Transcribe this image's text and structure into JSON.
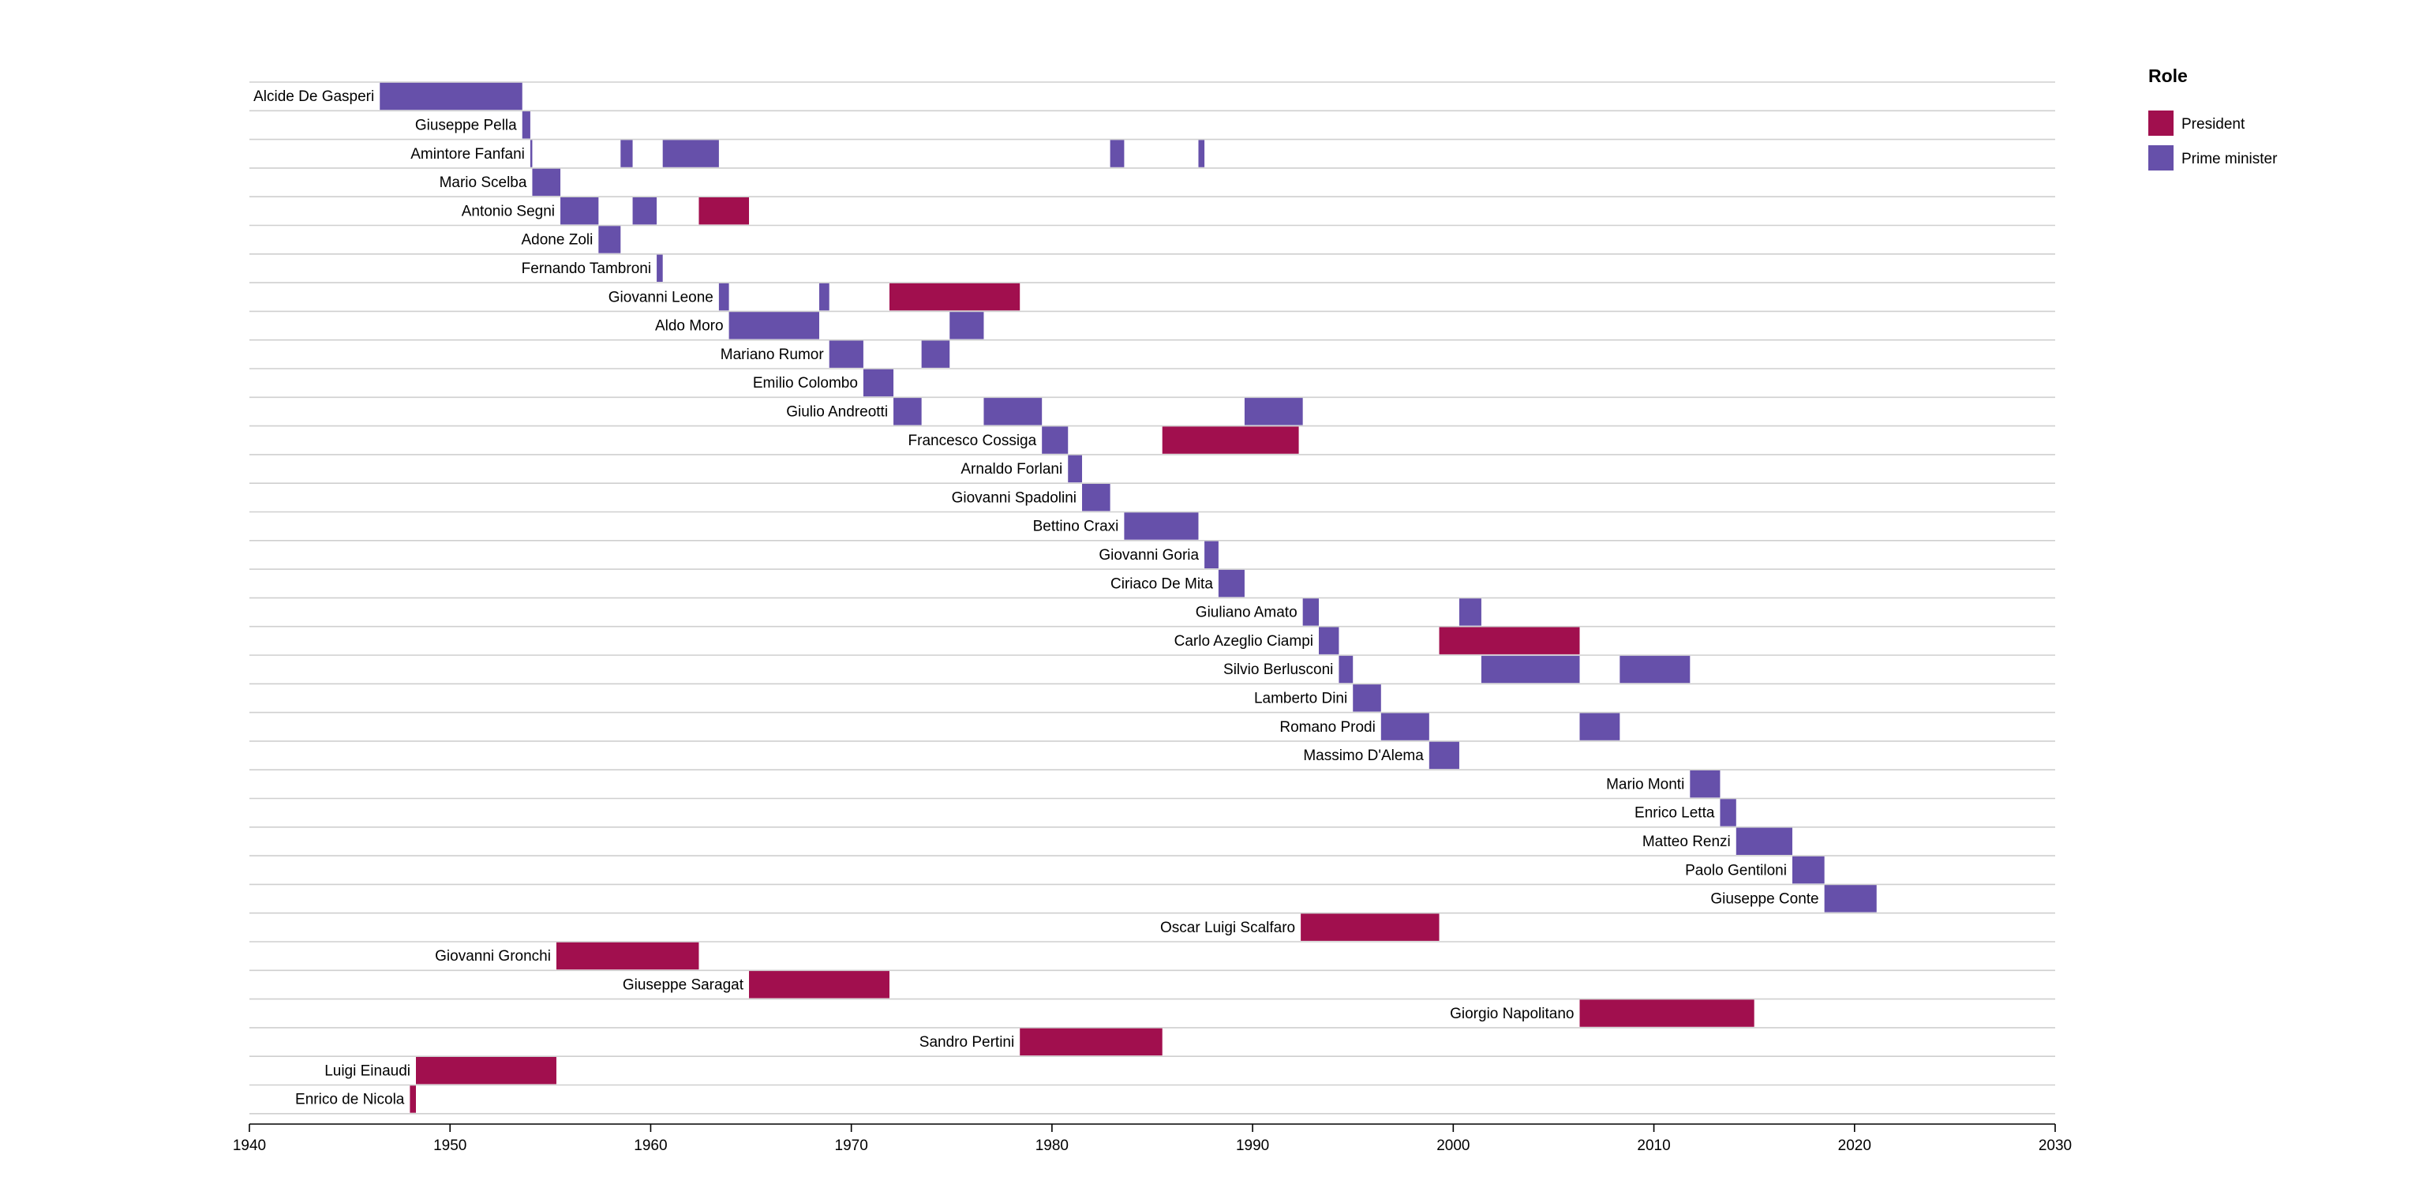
{
  "chart_data": {
    "type": "timeline",
    "xlim": [
      1940,
      2030
    ],
    "x_ticks": [
      "1940",
      "1950",
      "1960",
      "1970",
      "1980",
      "1990",
      "2000",
      "2010",
      "2020",
      "2030"
    ],
    "grid": "horizontal row lines",
    "legend": {
      "title": "Role",
      "placement": "top-right",
      "items": [
        {
          "label": "President",
          "color": "#a10f4e"
        },
        {
          "label": "Prime minister",
          "color": "#6650aa"
        }
      ]
    },
    "rows": [
      {
        "name": "Alcide De Gasperi",
        "terms": [
          {
            "role": "Prime minister",
            "start": 1946.5,
            "end": 1953.6
          }
        ]
      },
      {
        "name": "Giuseppe Pella",
        "terms": [
          {
            "role": "Prime minister",
            "start": 1953.6,
            "end": 1954.0
          }
        ]
      },
      {
        "name": "Amintore Fanfani",
        "terms": [
          {
            "role": "Prime minister",
            "start": 1954.0,
            "end": 1954.1
          },
          {
            "role": "Prime minister",
            "start": 1958.5,
            "end": 1959.1
          },
          {
            "role": "Prime minister",
            "start": 1960.6,
            "end": 1963.4
          },
          {
            "role": "Prime minister",
            "start": 1982.9,
            "end": 1983.6
          },
          {
            "role": "Prime minister",
            "start": 1987.3,
            "end": 1987.6
          }
        ]
      },
      {
        "name": "Mario Scelba",
        "terms": [
          {
            "role": "Prime minister",
            "start": 1954.1,
            "end": 1955.5
          }
        ]
      },
      {
        "name": "Antonio Segni",
        "terms": [
          {
            "role": "Prime minister",
            "start": 1955.5,
            "end": 1957.4
          },
          {
            "role": "Prime minister",
            "start": 1959.1,
            "end": 1960.3
          },
          {
            "role": "President",
            "start": 1962.4,
            "end": 1964.9
          }
        ]
      },
      {
        "name": "Adone Zoli",
        "terms": [
          {
            "role": "Prime minister",
            "start": 1957.4,
            "end": 1958.5
          }
        ]
      },
      {
        "name": "Fernando Tambroni",
        "terms": [
          {
            "role": "Prime minister",
            "start": 1960.3,
            "end": 1960.6
          }
        ]
      },
      {
        "name": "Giovanni Leone",
        "terms": [
          {
            "role": "Prime minister",
            "start": 1963.4,
            "end": 1963.9
          },
          {
            "role": "Prime minister",
            "start": 1968.4,
            "end": 1968.9
          },
          {
            "role": "President",
            "start": 1971.9,
            "end": 1978.4
          }
        ]
      },
      {
        "name": "Aldo Moro",
        "terms": [
          {
            "role": "Prime minister",
            "start": 1963.9,
            "end": 1968.4
          },
          {
            "role": "Prime minister",
            "start": 1974.9,
            "end": 1976.6
          }
        ]
      },
      {
        "name": "Mariano Rumor",
        "terms": [
          {
            "role": "Prime minister",
            "start": 1968.9,
            "end": 1970.6
          },
          {
            "role": "Prime minister",
            "start": 1973.5,
            "end": 1974.9
          }
        ]
      },
      {
        "name": "Emilio Colombo",
        "terms": [
          {
            "role": "Prime minister",
            "start": 1970.6,
            "end": 1972.1
          }
        ]
      },
      {
        "name": "Giulio Andreotti",
        "terms": [
          {
            "role": "Prime minister",
            "start": 1972.1,
            "end": 1973.5
          },
          {
            "role": "Prime minister",
            "start": 1976.6,
            "end": 1979.5
          },
          {
            "role": "Prime minister",
            "start": 1989.6,
            "end": 1992.5
          }
        ]
      },
      {
        "name": "Francesco Cossiga",
        "terms": [
          {
            "role": "Prime minister",
            "start": 1979.5,
            "end": 1980.8
          },
          {
            "role": "President",
            "start": 1985.5,
            "end": 1992.3
          }
        ]
      },
      {
        "name": "Arnaldo Forlani",
        "terms": [
          {
            "role": "Prime minister",
            "start": 1980.8,
            "end": 1981.5
          }
        ]
      },
      {
        "name": "Giovanni Spadolini",
        "terms": [
          {
            "role": "Prime minister",
            "start": 1981.5,
            "end": 1982.9
          }
        ]
      },
      {
        "name": "Bettino Craxi",
        "terms": [
          {
            "role": "Prime minister",
            "start": 1983.6,
            "end": 1987.3
          }
        ]
      },
      {
        "name": "Giovanni Goria",
        "terms": [
          {
            "role": "Prime minister",
            "start": 1987.6,
            "end": 1988.3
          }
        ]
      },
      {
        "name": "Ciriaco De Mita",
        "terms": [
          {
            "role": "Prime minister",
            "start": 1988.3,
            "end": 1989.6
          }
        ]
      },
      {
        "name": "Giuliano Amato",
        "terms": [
          {
            "role": "Prime minister",
            "start": 1992.5,
            "end": 1993.3
          },
          {
            "role": "Prime minister",
            "start": 2000.3,
            "end": 2001.4
          }
        ]
      },
      {
        "name": "Carlo Azeglio Ciampi",
        "terms": [
          {
            "role": "Prime minister",
            "start": 1993.3,
            "end": 1994.3
          },
          {
            "role": "President",
            "start": 1999.3,
            "end": 2006.3
          }
        ]
      },
      {
        "name": "Silvio Berlusconi",
        "terms": [
          {
            "role": "Prime minister",
            "start": 1994.3,
            "end": 1995.0
          },
          {
            "role": "Prime minister",
            "start": 2001.4,
            "end": 2006.3
          },
          {
            "role": "Prime minister",
            "start": 2008.3,
            "end": 2011.8
          }
        ]
      },
      {
        "name": "Lamberto Dini",
        "terms": [
          {
            "role": "Prime minister",
            "start": 1995.0,
            "end": 1996.4
          }
        ]
      },
      {
        "name": "Romano Prodi",
        "terms": [
          {
            "role": "Prime minister",
            "start": 1996.4,
            "end": 1998.8
          },
          {
            "role": "Prime minister",
            "start": 2006.3,
            "end": 2008.3
          }
        ]
      },
      {
        "name": "Massimo D'Alema",
        "terms": [
          {
            "role": "Prime minister",
            "start": 1998.8,
            "end": 2000.3
          }
        ]
      },
      {
        "name": "Mario Monti",
        "terms": [
          {
            "role": "Prime minister",
            "start": 2011.8,
            "end": 2013.3
          }
        ]
      },
      {
        "name": "Enrico Letta",
        "terms": [
          {
            "role": "Prime minister",
            "start": 2013.3,
            "end": 2014.1
          }
        ]
      },
      {
        "name": "Matteo Renzi",
        "terms": [
          {
            "role": "Prime minister",
            "start": 2014.1,
            "end": 2016.9
          }
        ]
      },
      {
        "name": "Paolo Gentiloni",
        "terms": [
          {
            "role": "Prime minister",
            "start": 2016.9,
            "end": 2018.5
          }
        ]
      },
      {
        "name": "Giuseppe Conte",
        "terms": [
          {
            "role": "Prime minister",
            "start": 2018.5,
            "end": 2021.1
          }
        ]
      },
      {
        "name": "Oscar Luigi Scalfaro",
        "terms": [
          {
            "role": "President",
            "start": 1992.4,
            "end": 1999.3
          }
        ]
      },
      {
        "name": "Giovanni Gronchi",
        "terms": [
          {
            "role": "President",
            "start": 1955.3,
            "end": 1962.4
          }
        ]
      },
      {
        "name": "Giuseppe Saragat",
        "terms": [
          {
            "role": "President",
            "start": 1964.9,
            "end": 1971.9
          }
        ]
      },
      {
        "name": "Giorgio Napolitano",
        "terms": [
          {
            "role": "President",
            "start": 2006.3,
            "end": 2015.0
          }
        ]
      },
      {
        "name": "Sandro Pertini",
        "terms": [
          {
            "role": "President",
            "start": 1978.4,
            "end": 1985.5
          }
        ]
      },
      {
        "name": "Luigi Einaudi",
        "terms": [
          {
            "role": "President",
            "start": 1948.3,
            "end": 1955.3
          }
        ]
      },
      {
        "name": "Enrico de Nicola",
        "terms": [
          {
            "role": "President",
            "start": 1948.0,
            "end": 1948.3
          }
        ]
      }
    ]
  }
}
